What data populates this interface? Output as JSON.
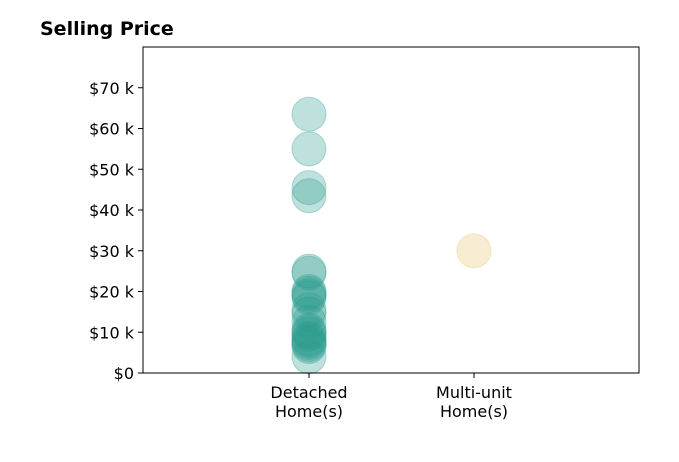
{
  "chart_data": {
    "type": "scatter",
    "title": "Selling Price",
    "xlabel": "",
    "ylabel": "",
    "categories": [
      [
        "Detached",
        "Home(s)"
      ],
      [
        "Multi-unit",
        "Home(s)"
      ]
    ],
    "ylim": [
      0,
      80000
    ],
    "yticks": [
      {
        "value": 0,
        "label": "$0"
      },
      {
        "value": 10000,
        "label": "$10 k"
      },
      {
        "value": 20000,
        "label": "$20 k"
      },
      {
        "value": 30000,
        "label": "$30 k"
      },
      {
        "value": 40000,
        "label": "$40 k"
      },
      {
        "value": 50000,
        "label": "$50 k"
      },
      {
        "value": 60000,
        "label": "$60 k"
      },
      {
        "value": 70000,
        "label": "$70 k"
      }
    ],
    "grid": false,
    "legend": "none",
    "colors": {
      "Detached Home(s)": "#2a9d8f",
      "Multi-unit Home(s)": "#e9c46a"
    },
    "points": [
      {
        "category": 0,
        "y": 63500
      },
      {
        "category": 0,
        "y": 55000
      },
      {
        "category": 0,
        "y": 45500
      },
      {
        "category": 0,
        "y": 43500
      },
      {
        "category": 0,
        "y": 25000
      },
      {
        "category": 0,
        "y": 24500
      },
      {
        "category": 0,
        "y": 20000
      },
      {
        "category": 0,
        "y": 19500
      },
      {
        "category": 0,
        "y": 19000
      },
      {
        "category": 0,
        "y": 18500
      },
      {
        "category": 0,
        "y": 15500
      },
      {
        "category": 0,
        "y": 14500
      },
      {
        "category": 0,
        "y": 12500
      },
      {
        "category": 0,
        "y": 10500
      },
      {
        "category": 0,
        "y": 10000
      },
      {
        "category": 0,
        "y": 9500
      },
      {
        "category": 0,
        "y": 8500
      },
      {
        "category": 0,
        "y": 8000
      },
      {
        "category": 0,
        "y": 7500
      },
      {
        "category": 0,
        "y": 7000
      },
      {
        "category": 0,
        "y": 6500
      },
      {
        "category": 0,
        "y": 4000
      },
      {
        "category": 1,
        "y": 30000
      }
    ]
  }
}
